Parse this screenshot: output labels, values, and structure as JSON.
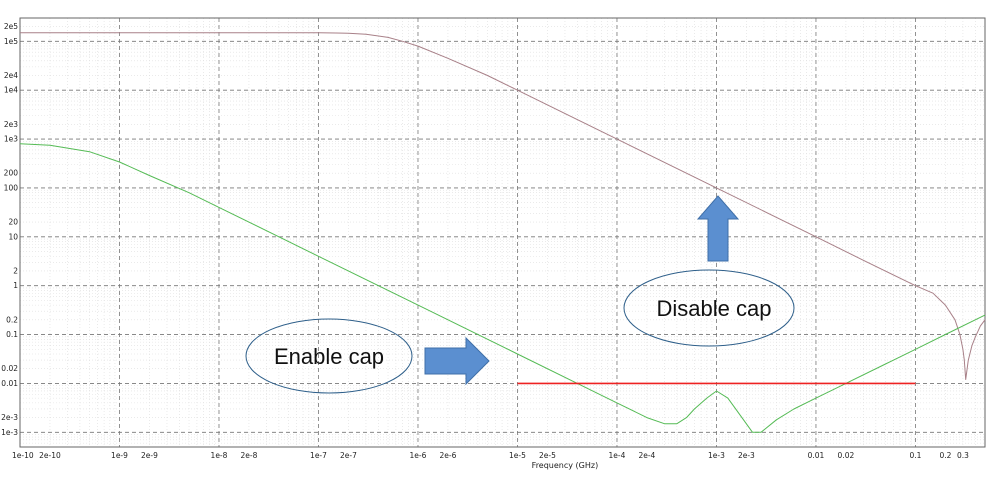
{
  "chart_data": {
    "type": "line",
    "xlabel": "Frequency (GHz)",
    "x_scale": "log",
    "y_scale": "log",
    "xlim": [
      1e-10,
      0.5
    ],
    "ylim": [
      0.0005,
      300000
    ],
    "grid": true,
    "x_ticks": [
      {
        "v": 1e-10,
        "label": "1e-10"
      },
      {
        "v": 2e-10,
        "label": "2e-10"
      },
      {
        "v": 1e-09,
        "label": "1e-9"
      },
      {
        "v": 2e-09,
        "label": "2e-9"
      },
      {
        "v": 1e-08,
        "label": "1e-8"
      },
      {
        "v": 2e-08,
        "label": "2e-8"
      },
      {
        "v": 1e-07,
        "label": "1e-7"
      },
      {
        "v": 2e-07,
        "label": "2e-7"
      },
      {
        "v": 1e-06,
        "label": "1e-6"
      },
      {
        "v": 2e-06,
        "label": "2e-6"
      },
      {
        "v": 1e-05,
        "label": "1e-5"
      },
      {
        "v": 2e-05,
        "label": "2e-5"
      },
      {
        "v": 0.0001,
        "label": "1e-4"
      },
      {
        "v": 0.0002,
        "label": "2e-4"
      },
      {
        "v": 0.001,
        "label": "1e-3"
      },
      {
        "v": 0.002,
        "label": "2e-3"
      },
      {
        "v": 0.01,
        "label": "0.01"
      },
      {
        "v": 0.02,
        "label": "0.02"
      },
      {
        "v": 0.1,
        "label": "0.1"
      },
      {
        "v": 0.2,
        "label": "0.2"
      },
      {
        "v": 0.3,
        "label": "0.3"
      }
    ],
    "y_ticks": [
      {
        "v": 200000,
        "label": "2e5"
      },
      {
        "v": 100000,
        "label": "1e5"
      },
      {
        "v": 20000,
        "label": "2e4"
      },
      {
        "v": 10000,
        "label": "1e4"
      },
      {
        "v": 2000,
        "label": "2e3"
      },
      {
        "v": 1000,
        "label": "1e3"
      },
      {
        "v": 200,
        "label": "200"
      },
      {
        "v": 100,
        "label": "100"
      },
      {
        "v": 20,
        "label": "20"
      },
      {
        "v": 10,
        "label": "10"
      },
      {
        "v": 2,
        "label": "2"
      },
      {
        "v": 1,
        "label": "1"
      },
      {
        "v": 0.2,
        "label": "0.2"
      },
      {
        "v": 0.1,
        "label": "0.1"
      },
      {
        "v": 0.02,
        "label": "0.02"
      },
      {
        "v": 0.01,
        "label": "0.01"
      },
      {
        "v": 0.002,
        "label": "2e-3"
      },
      {
        "v": 0.001,
        "label": "1e-3"
      }
    ],
    "series": [
      {
        "color": "#a88088",
        "x": [
          1e-10,
          1e-09,
          1e-08,
          1e-07,
          1.5e-07,
          2e-07,
          3e-07,
          5e-07,
          7e-07,
          1e-06,
          2e-06,
          5e-06,
          1e-05,
          0.0001,
          0.001,
          0.01,
          0.03,
          0.1,
          0.15,
          0.2,
          0.25,
          0.28,
          0.3,
          0.31,
          0.32,
          0.34,
          0.37,
          0.4,
          0.45,
          0.5
        ],
        "y": [
          150000,
          150000,
          150000,
          150000,
          148000,
          146000,
          140000,
          120000,
          100000,
          80000,
          45000,
          20000,
          10000,
          1000,
          100,
          10,
          3.3,
          1,
          0.7,
          0.4,
          0.2,
          0.1,
          0.05,
          0.03,
          0.012,
          0.03,
          0.06,
          0.09,
          0.15,
          0.2
        ]
      },
      {
        "color": "#55bb55",
        "x": [
          1e-10,
          2e-10,
          5e-10,
          1e-09,
          2e-09,
          5e-09,
          1e-08,
          1e-07,
          1e-06,
          1e-05,
          5e-05,
          0.0001,
          0.0002,
          0.0003,
          0.0004,
          0.0005,
          0.0006,
          0.0008,
          0.001,
          0.0013,
          0.0018,
          0.0023,
          0.0028,
          0.004,
          0.006,
          0.01,
          0.02,
          0.05,
          0.1,
          0.2,
          0.5
        ],
        "y": [
          800,
          750,
          550,
          340,
          180,
          80,
          40,
          4,
          0.4,
          0.04,
          0.008,
          0.004,
          0.002,
          0.0015,
          0.0015,
          0.002,
          0.003,
          0.005,
          0.007,
          0.005,
          0.002,
          0.001,
          0.001,
          0.0018,
          0.003,
          0.005,
          0.01,
          0.025,
          0.05,
          0.1,
          0.25
        ]
      },
      {
        "color": "#ee2222",
        "x": [
          1e-05,
          0.1
        ],
        "y": [
          0.01,
          0.01
        ]
      }
    ]
  },
  "annotations": {
    "enable_cap": "Enable cap",
    "disable_cap": "Disable cap"
  },
  "colors": {
    "annotation_arrow": "#5b8fd0",
    "annotation_outline": "#2e5f8a",
    "grid_major": "#777777",
    "grid_minor": "#dddddd"
  }
}
